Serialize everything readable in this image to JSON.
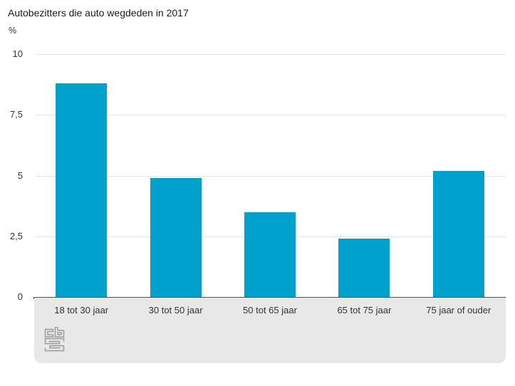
{
  "chart_data": {
    "type": "bar",
    "title": "Autobezitters die auto wegdeden in 2017",
    "ylabel": "%",
    "xlabel": "",
    "categories": [
      "18 tot 30 jaar",
      "30 tot 50 jaar",
      "50 tot 65 jaar",
      "65 tot 75 jaar",
      "75 jaar of ouder"
    ],
    "values": [
      8.8,
      4.9,
      3.5,
      2.4,
      5.2
    ],
    "ylim": [
      0,
      10
    ],
    "yticks": [
      {
        "value": 10,
        "label": "10"
      },
      {
        "value": 7.5,
        "label": "7,5"
      },
      {
        "value": 5,
        "label": "5"
      },
      {
        "value": 2.5,
        "label": "2,5"
      },
      {
        "value": 0,
        "label": "0"
      }
    ],
    "grid": true,
    "legend": false,
    "bar_color": "#00a1cd"
  },
  "branding": {
    "logo_name": "cbs-logo",
    "logo_color": "#9c9c9c"
  },
  "colors": {
    "bar": "#00a1cd",
    "footer_bg": "#e8e8e8",
    "gridline": "#e2e2e2",
    "baseline": "#4d4d4d",
    "text": "#333333",
    "title_text": "#1a1a1a"
  }
}
